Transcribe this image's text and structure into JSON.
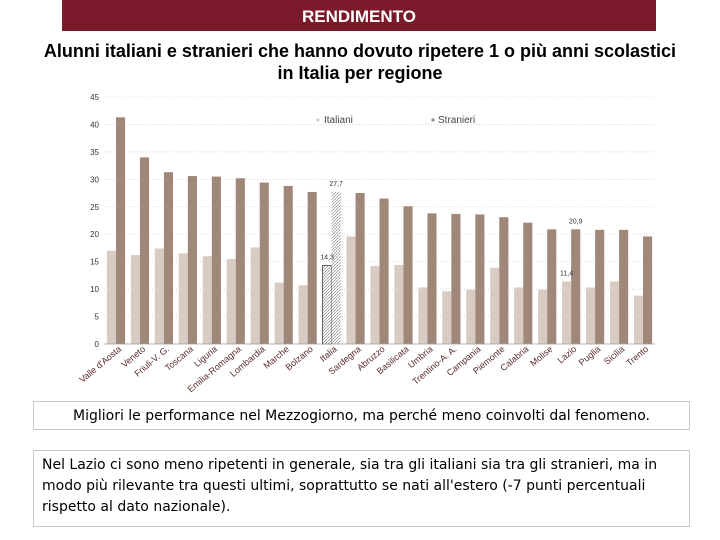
{
  "header": {
    "banner": "RENDIMENTO"
  },
  "chart_data": {
    "type": "bar",
    "title": "Alunni italiani e stranieri che hanno dovuto ripetere 1 o più anni scolastici in Italia per regione",
    "ylim": [
      0,
      45
    ],
    "yticks": [
      "0",
      "5",
      "10",
      "15",
      "20",
      "25",
      "30",
      "35",
      "40",
      "45"
    ],
    "legend": {
      "placement": "top",
      "italiani": "Italiani",
      "stranieri": "Stranieri"
    },
    "categories": [
      "Valle d'Aosta",
      "Veneto",
      "Friuli-V. G.",
      "Toscana",
      "Liguria",
      "Emilia-Romagna",
      "Lombardia",
      "Marche",
      "Bolzano",
      "Italia",
      "Sardegna",
      "Abruzzo",
      "Basilicata",
      "Umbria",
      "Trentino-A. A.",
      "Campania",
      "Piemonte",
      "Calabria",
      "Molise",
      "Lazio",
      "Puglia",
      "Sicilia",
      "Trento"
    ],
    "category_labels": [
      "Valle d'Aosta",
      "Veneto",
      "Friuli-V. G.",
      "Toscana",
      "Liguria",
      "Emilia-Romagna",
      "Lombardia",
      "Marche",
      "Bolzano",
      "Italia",
      "Sardegna",
      "Abruzzo",
      "Basilicata",
      "Umbria",
      "Trentino-A. A.",
      "Campania",
      "Piemonte",
      "Calabria",
      "Molise",
      "Lazio",
      "Puglia",
      "Sicilia",
      "Trento"
    ],
    "series": [
      {
        "name": "Italiani",
        "color": "#d9cbc2",
        "values": [
          17.0,
          16.2,
          17.4,
          16.5,
          16.0,
          15.5,
          17.6,
          11.2,
          10.7,
          14.3,
          19.6,
          14.2,
          14.4,
          10.3,
          9.6,
          9.9,
          13.9,
          10.3,
          9.9,
          11.4,
          10.3,
          11.4,
          8.8
        ]
      },
      {
        "name": "Stranieri",
        "color": "#a0877a",
        "values": [
          41.3,
          34.0,
          31.3,
          30.6,
          30.5,
          30.2,
          29.4,
          28.8,
          27.7,
          27.7,
          27.5,
          26.5,
          25.1,
          23.8,
          23.7,
          23.6,
          23.1,
          22.1,
          20.9,
          20.9,
          20.8,
          20.8,
          19.6
        ]
      }
    ],
    "data_labels": [
      {
        "series": "Stranieri",
        "category": "Italia",
        "text": "27,7"
      },
      {
        "series": "Italiani",
        "category": "Italia",
        "text": "14,3"
      },
      {
        "series": "Stranieri",
        "category": "Lazio",
        "text": "20,9"
      },
      {
        "series": "Italiani",
        "category": "Lazio",
        "text": "11,4"
      }
    ]
  },
  "notes": {
    "first": "Migliori le  performance nel Mezzogiorno, ma perché meno coinvolti dal fenomeno.",
    "second": "Nel Lazio ci sono meno ripetenti in generale, sia tra gli italiani sia tra gli stranieri, ma in modo più rilevante tra questi ultimi, soprattutto se nati all'estero (-7 punti percentuali rispetto al dato nazionale)."
  }
}
